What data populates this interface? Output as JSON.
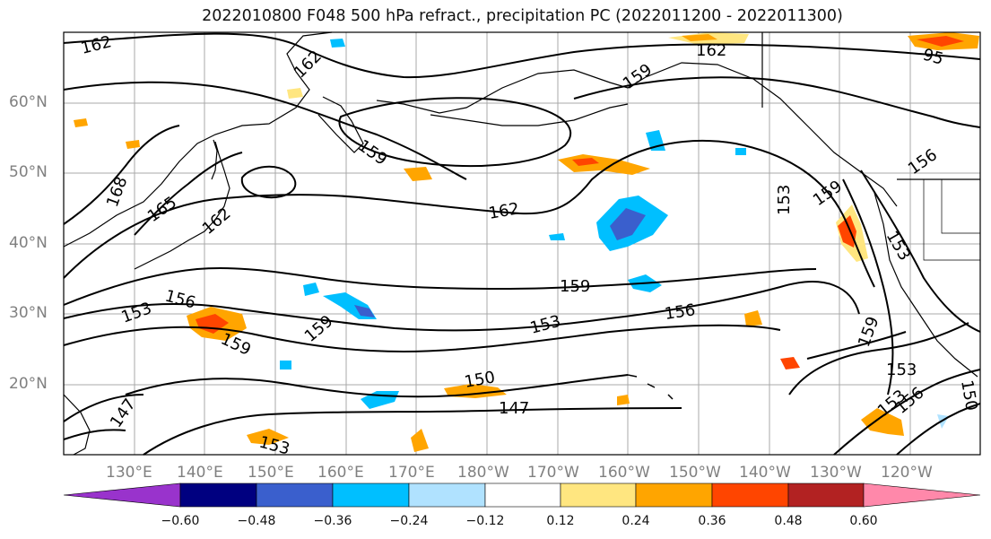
{
  "title": "2022010800 F048 500 hPa refract., precipitation PC (2022011200 - 2022011300)",
  "lat_labels": [
    "60°N",
    "50°N",
    "40°N",
    "30°N",
    "20°N"
  ],
  "lon_labels": [
    "130°E",
    "140°E",
    "150°E",
    "160°E",
    "170°E",
    "180°W",
    "170°W",
    "160°W",
    "150°W",
    "140°W",
    "130°W",
    "120°W"
  ],
  "contour_labels": [
    "162",
    "162",
    "159",
    "162",
    "159",
    "159",
    "168",
    "165",
    "162",
    "162",
    "156",
    "159",
    "156",
    "153",
    "159",
    "159",
    "153",
    "156",
    "150",
    "147",
    "153",
    "147",
    "153",
    "153",
    "159",
    "156",
    "153",
    "153",
    "159",
    "156",
    "150",
    "95"
  ],
  "colorbar": {
    "ticks": [
      "−0.60",
      "−0.48",
      "−0.36",
      "−0.24",
      "−0.12",
      "0.12",
      "0.24",
      "0.36",
      "0.48",
      "0.60"
    ],
    "colors": {
      "under": "#9933cc",
      "c1": "#000080",
      "c2": "#3a5fcd",
      "c3": "#00bfff",
      "c4": "#b0e2ff",
      "c5": "#ffffff",
      "c6": "#ffe680",
      "c7": "#ffa500",
      "c8": "#ff4500",
      "c9": "#b22222",
      "over": "#ff88aa"
    }
  },
  "grid": true
}
